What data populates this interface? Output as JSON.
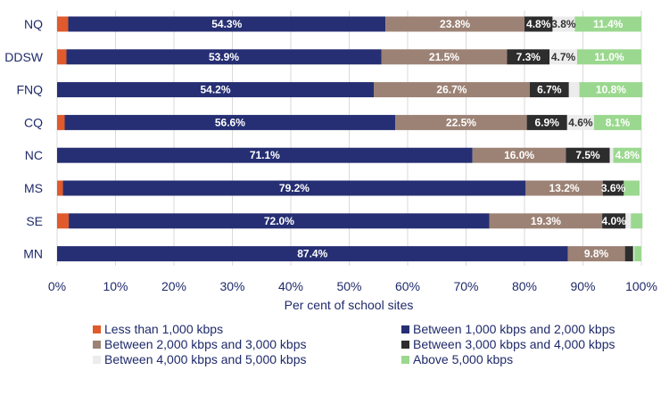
{
  "chart_data": {
    "type": "bar",
    "orientation": "horizontal",
    "stacked": true,
    "categories": [
      "NQ",
      "DDSW",
      "FNQ",
      "CQ",
      "NC",
      "MS",
      "SE",
      "MN"
    ],
    "series": [
      {
        "name": "Less than 1,000 kbps",
        "color": "#e05a2b",
        "values": [
          1.9,
          1.6,
          0.0,
          1.3,
          0.0,
          1.0,
          2.0,
          0.0
        ]
      },
      {
        "name": "Between 1,000 kbps and 2,000 kbps",
        "color": "#262f73",
        "values": [
          54.3,
          53.9,
          54.2,
          56.6,
          71.1,
          79.2,
          72.0,
          87.4
        ]
      },
      {
        "name": "Between 2,000 kbps and 3,000 kbps",
        "color": "#9c8275",
        "values": [
          23.8,
          21.5,
          26.7,
          22.5,
          16.0,
          13.2,
          19.3,
          9.8
        ]
      },
      {
        "name": "Between 3,000 kbps and 4,000 kbps",
        "color": "#2d2d2d",
        "values": [
          4.8,
          7.3,
          6.7,
          6.9,
          7.5,
          3.6,
          4.0,
          1.4
        ]
      },
      {
        "name": "Between 4,000 kbps and 5,000 kbps",
        "color": "#ececec",
        "values": [
          3.8,
          4.7,
          1.8,
          4.6,
          0.6,
          0.0,
          0.9,
          0.2
        ]
      },
      {
        "name": "Above 5,000 kbps",
        "color": "#9bd88f",
        "values": [
          11.4,
          11.0,
          10.8,
          8.1,
          4.8,
          2.7,
          2.0,
          1.2
        ]
      }
    ],
    "data_labels": [
      [
        null,
        "54.3%",
        "23.8%",
        "4.8%",
        "3.8%",
        "11.4%"
      ],
      [
        null,
        "53.9%",
        "21.5%",
        "7.3%",
        "4.7%",
        "11.0%"
      ],
      [
        null,
        "54.2%",
        "26.7%",
        "6.7%",
        null,
        "10.8%"
      ],
      [
        null,
        "56.6%",
        "22.5%",
        "6.9%",
        "4.6%",
        "8.1%"
      ],
      [
        null,
        "71.1%",
        "16.0%",
        "7.5%",
        null,
        "4.8%"
      ],
      [
        null,
        "79.2%",
        "13.2%",
        "3.6%",
        null,
        null
      ],
      [
        null,
        "72.0%",
        "19.3%",
        "4.0%",
        null,
        null
      ],
      [
        null,
        "87.4%",
        "9.8%",
        null,
        null,
        null
      ]
    ],
    "label_colors": [
      "#ffffff",
      "#ffffff",
      "#ffffff",
      "#ffffff",
      "#333333",
      "#ffffff"
    ],
    "xlim": [
      0,
      100
    ],
    "x_ticks": [
      "0%",
      "10%",
      "20%",
      "30%",
      "40%",
      "50%",
      "60%",
      "70%",
      "80%",
      "90%",
      "100%"
    ],
    "xlabel": "Per cent of school sites",
    "ylabel": "",
    "title": "",
    "grid": "vertical",
    "legend_position": "bottom"
  }
}
